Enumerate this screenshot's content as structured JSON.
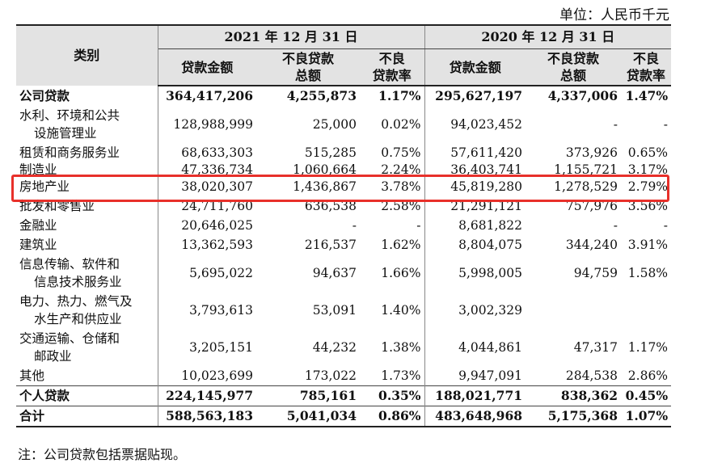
{
  "unit_label": "单位：人民币千元",
  "headers": {
    "category": "类别",
    "period_2021": "2021 年 12 月 31 日",
    "period_2020": "2020 年 12 月 31 日",
    "loan_amount": "贷款金额",
    "npl_line1": "不良贷款",
    "npl_line2": "总额",
    "npl_ratio_line1": "不良",
    "npl_ratio_line2": "贷款率"
  },
  "rows": [
    {
      "name": [
        "公司贷款"
      ],
      "bold": true,
      "v": [
        "364,417,206",
        "4,255,873",
        "1.17%",
        "295,627,197",
        "4,337,006",
        "1.47%"
      ]
    },
    {
      "name": [
        "水利、环境和公共",
        "设施管理业"
      ],
      "v": [
        "128,988,999",
        "25,000",
        "0.02%",
        "94,023,452",
        "-",
        "-"
      ]
    },
    {
      "name": [
        "租赁和商务服务业"
      ],
      "v": [
        "68,633,303",
        "515,285",
        "0.75%",
        "57,611,420",
        "373,926",
        "0.65%"
      ]
    },
    {
      "name": [
        "制造业"
      ],
      "cut": true,
      "v": [
        "47,336,734",
        "1,060,664",
        "2.24%",
        "36,403,741",
        "1,155,721",
        "3.17%"
      ]
    },
    {
      "name": [
        "房地产业"
      ],
      "v": [
        "38,020,307",
        "1,436,867",
        "3.78%",
        "45,819,280",
        "1,278,529",
        "2.79%"
      ]
    },
    {
      "name": [
        "批发和零售业"
      ],
      "v": [
        "24,711,760",
        "636,538",
        "2.58%",
        "21,291,121",
        "757,976",
        "3.56%"
      ]
    },
    {
      "name": [
        "金融业"
      ],
      "v": [
        "20,646,025",
        "-",
        "-",
        "8,681,822",
        "-",
        "-"
      ]
    },
    {
      "name": [
        "建筑业"
      ],
      "v": [
        "13,362,593",
        "216,537",
        "1.62%",
        "8,804,075",
        "344,240",
        "3.91%"
      ]
    },
    {
      "name": [
        "信息传输、软件和",
        "信息技术服务业"
      ],
      "v": [
        "5,695,022",
        "94,637",
        "1.66%",
        "5,998,005",
        "94,759",
        "1.58%"
      ]
    },
    {
      "name": [
        "电力、热力、燃气及",
        "水生产和供应业"
      ],
      "v": [
        "3,793,613",
        "53,091",
        "1.40%",
        "3,002,329",
        "",
        ""
      ]
    },
    {
      "name": [
        "交通运输、仓储和",
        "邮政业"
      ],
      "v": [
        "3,205,151",
        "44,232",
        "1.38%",
        "4,044,861",
        "47,317",
        "1.17%"
      ]
    },
    {
      "name": [
        "其他"
      ],
      "v": [
        "10,023,699",
        "173,022",
        "1.73%",
        "9,947,091",
        "284,538",
        "2.86%"
      ]
    },
    {
      "name": [
        "个人贷款"
      ],
      "bold": true,
      "subtop": true,
      "v": [
        "224,145,977",
        "785,161",
        "0.35%",
        "188,021,771",
        "838,362",
        "0.45%"
      ]
    },
    {
      "name": [
        "合计"
      ],
      "bold": true,
      "total": true,
      "v": [
        "588,563,183",
        "5,041,034",
        "0.86%",
        "483,648,968",
        "5,175,368",
        "1.07%"
      ]
    }
  ],
  "note": "注：公司贷款包括票据贴现。",
  "highlight_color": "#e8302a"
}
